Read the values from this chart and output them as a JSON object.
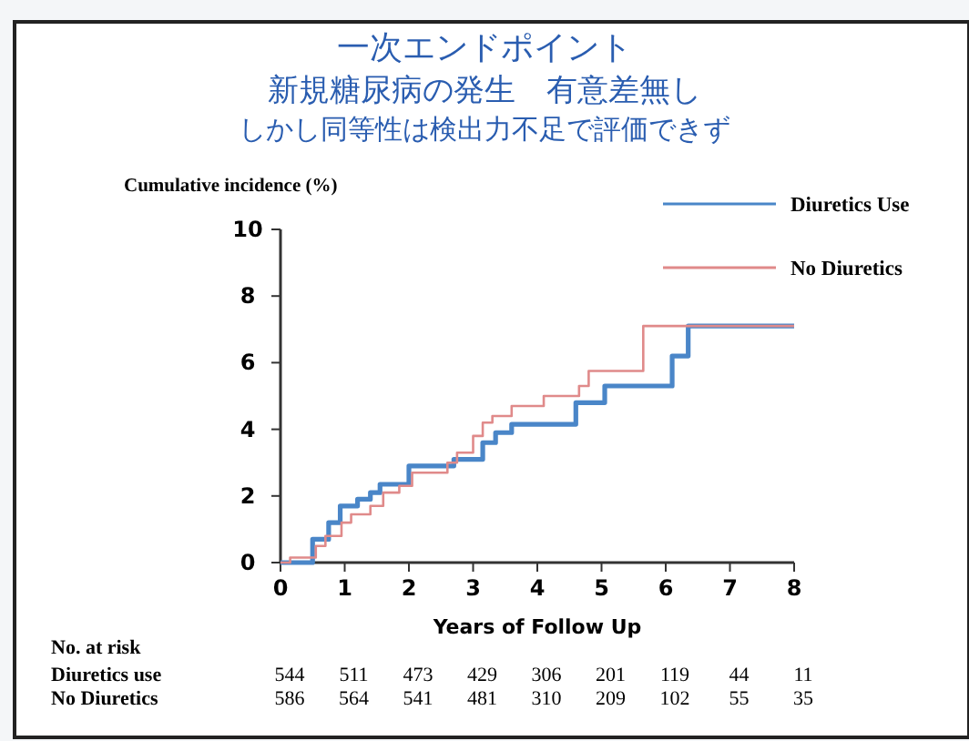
{
  "chart_data": {
    "type": "step",
    "title": "一次エンドポイント",
    "subtitle": "新規糖尿病の発生　有意差無し",
    "ylabel": "Cumulative incidence (%)",
    "xlabel": "Years of Follow Up",
    "series": [
      {
        "name": "Diuretics Use",
        "color": "#4a86c8",
        "x": [
          0,
          0.5,
          0.75,
          0.93,
          1.2,
          1.4,
          1.55,
          2.0,
          2.7,
          3.15,
          3.35,
          3.6,
          4.6,
          5.05,
          6.1,
          6.35,
          8
        ],
        "values": [
          0,
          0.7,
          1.2,
          1.7,
          1.9,
          2.1,
          2.35,
          2.9,
          3.1,
          3.6,
          3.9,
          4.15,
          4.8,
          5.3,
          6.2,
          7.1,
          7.1
        ]
      },
      {
        "name": "No Diuretics",
        "color": "#e08a8a",
        "x": [
          0,
          0.15,
          0.55,
          0.7,
          0.95,
          1.1,
          1.4,
          1.6,
          1.85,
          2.05,
          2.6,
          2.75,
          3.0,
          3.15,
          3.3,
          3.6,
          4.1,
          4.65,
          4.8,
          5.65,
          8
        ],
        "values": [
          0,
          0.15,
          0.5,
          0.8,
          1.2,
          1.45,
          1.7,
          2.1,
          2.3,
          2.7,
          3.0,
          3.3,
          3.8,
          4.2,
          4.4,
          4.7,
          5.0,
          5.3,
          5.75,
          7.1,
          7.1
        ]
      }
    ],
    "xlim": [
      0,
      8
    ],
    "xticks": [
      0,
      1,
      2,
      3,
      4,
      5,
      6,
      7,
      8
    ],
    "ylim": [
      0,
      10
    ],
    "yticks": [
      0,
      2,
      4,
      6,
      8,
      10
    ],
    "grid": false,
    "legend": "top right",
    "marker": "none",
    "line_style": "solid",
    "annotations": [
      "しかし同等性は検出力不足で評価できず",
      "No. at risk",
      "Diuretics use",
      "544",
      "511",
      "473",
      "429",
      "306",
      "201",
      "119",
      "44",
      "11",
      "No Diuretics",
      "586",
      "564",
      "541",
      "481",
      "310",
      "209",
      "102",
      "55",
      "35"
    ]
  }
}
